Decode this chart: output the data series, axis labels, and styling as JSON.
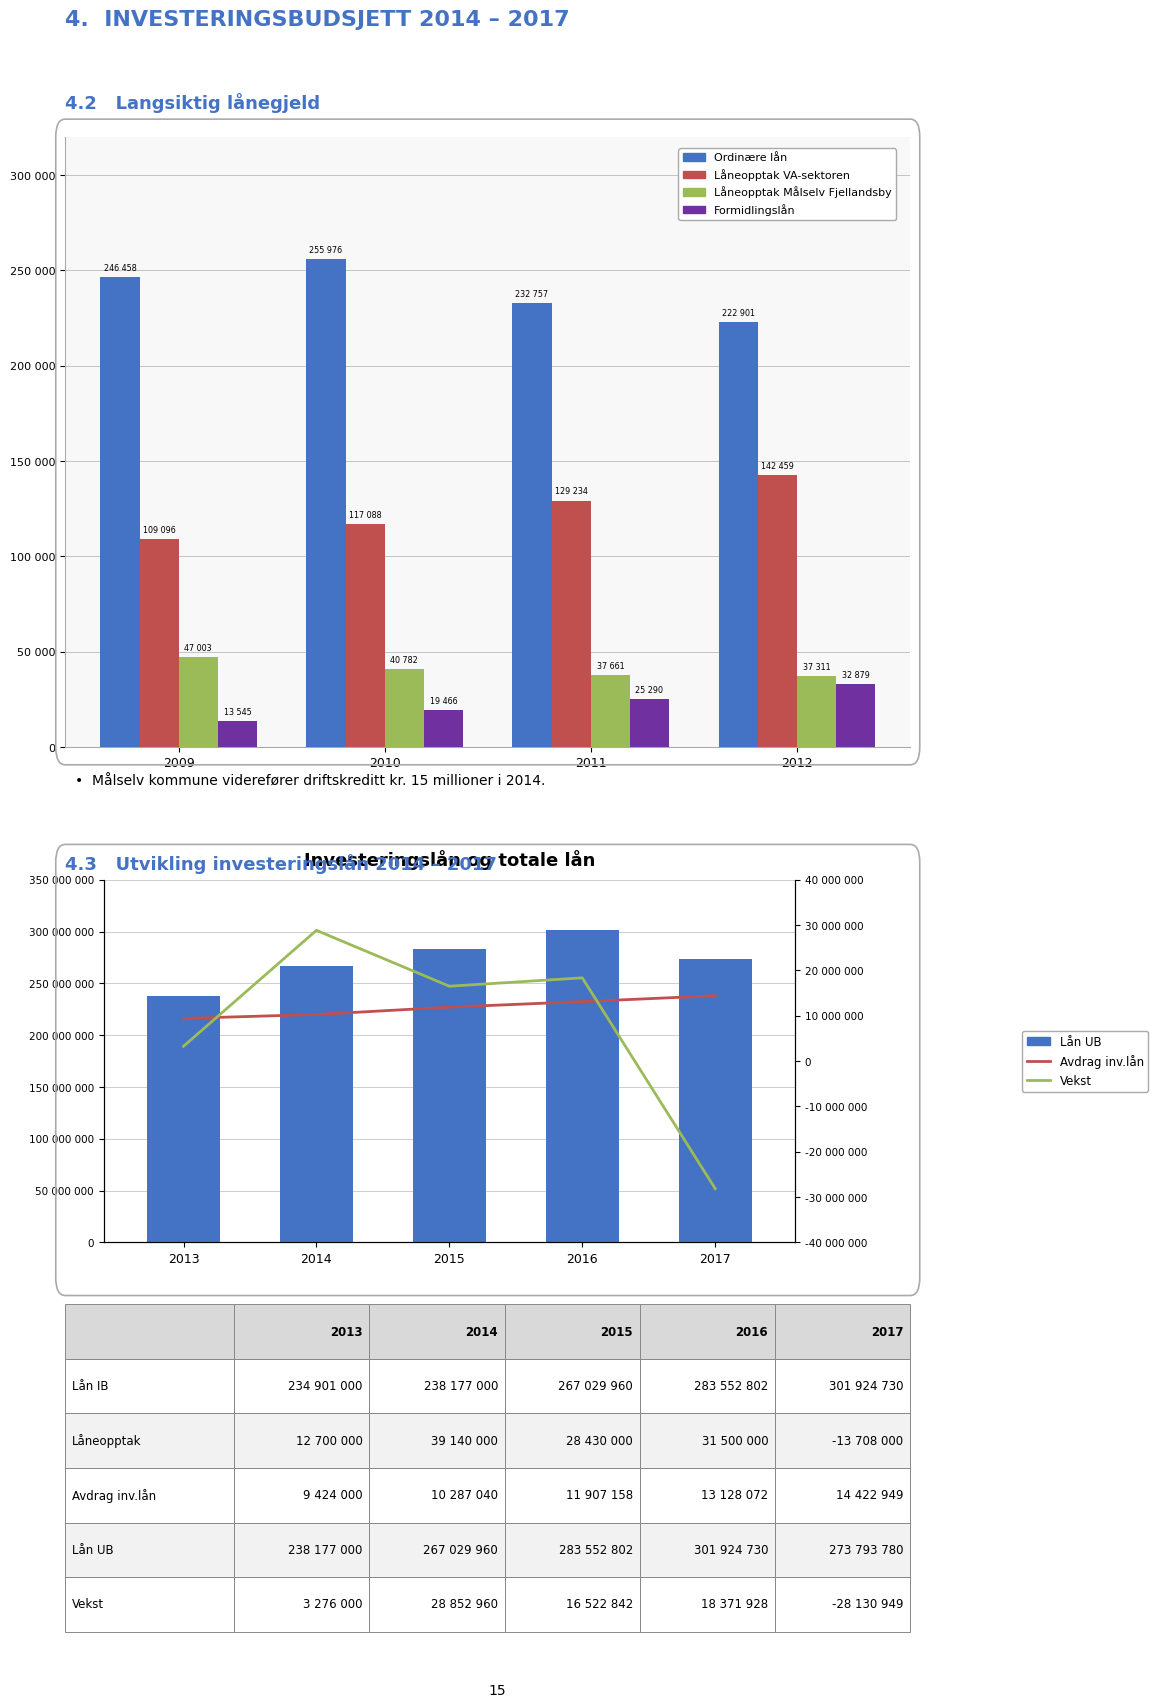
{
  "page_title": "4.  INVESTERINGSBUDSJETT 2014 – 2017",
  "section1_title": "4.2   Langsiktig lånegjeld",
  "section2_title": "4.3   Utvikling investeringslån 2014 – 2017",
  "bullet_text": "Målselv kommune viderefører driftskreditt kr. 15 millioner i 2014.",
  "chart1": {
    "years": [
      2009,
      2010,
      2011,
      2012
    ],
    "series": {
      "Ordinære lån": [
        246458,
        255976,
        232757,
        222901
      ],
      "Låneopptak VA-sektoren": [
        109096,
        117088,
        129234,
        142459
      ],
      "Låneopptak Målselv Fjellandsby": [
        47003,
        40782,
        37661,
        37311
      ],
      "Formidlingslån": [
        13545,
        19466,
        25290,
        32879
      ]
    },
    "colors": [
      "#4472C4",
      "#C0504D",
      "#9BBB59",
      "#7030A0"
    ],
    "ylim": [
      0,
      320000
    ],
    "yticks": [
      0,
      50000,
      100000,
      150000,
      200000,
      250000,
      300000
    ],
    "yticklabels": [
      "0",
      "50 000",
      "100 000",
      "150 000",
      "200 000",
      "250 000",
      "300 000"
    ]
  },
  "chart2": {
    "title": "Investeringslån og totale lån",
    "years": [
      2013,
      2014,
      2015,
      2016,
      2017
    ],
    "bar_values": [
      238177000,
      267029960,
      283552802,
      301924730,
      273793780
    ],
    "bar_color": "#4472C4",
    "avdrag_values": [
      9424000,
      10287040,
      11907158,
      13128072,
      14422949
    ],
    "vekst_values": [
      3276000,
      28852960,
      16522842,
      18371928,
      -28130949
    ],
    "left_ylim": [
      0,
      350000000
    ],
    "left_yticks": [
      0,
      50000000,
      100000000,
      150000000,
      200000000,
      250000000,
      300000000,
      350000000
    ],
    "left_yticklabels": [
      "0",
      "50 000 000",
      "100 000 000",
      "150 000 000",
      "200 000 000",
      "250 000 000",
      "300 000 000",
      "350 000 000"
    ],
    "right_ylim": [
      -40000000,
      40000000
    ],
    "right_yticks": [
      -40000000,
      -30000000,
      -20000000,
      -10000000,
      0,
      10000000,
      20000000,
      30000000,
      40000000
    ],
    "right_yticklabels": [
      "-40 000 000",
      "-30 000 000",
      "-20 000 000",
      "-10 000 000",
      "0",
      "10 000 000",
      "20 000 000",
      "30 000 000",
      "40 000 000"
    ],
    "avdrag_color": "#C0504D",
    "vekst_color": "#9BBB59",
    "legend_labels": [
      "Lån UB",
      "Avdrag inv.lån",
      "Vekst"
    ]
  },
  "table": {
    "headers": [
      "",
      "2013",
      "2014",
      "2015",
      "2016",
      "2017"
    ],
    "rows": [
      [
        "Lån IB",
        "234 901 000",
        "238 177 000",
        "267 029 960",
        "283 552 802",
        "301 924 730"
      ],
      [
        "Låneopptak",
        "12 700 000",
        "39 140 000",
        "28 430 000",
        "31 500 000",
        "-13 708 000"
      ],
      [
        "Avdrag inv.lån",
        "9 424 000",
        "10 287 040",
        "11 907 158",
        "13 128 072",
        "14 422 949"
      ],
      [
        "Lån UB",
        "238 177 000",
        "267 029 960",
        "283 552 802",
        "301 924 730",
        "273 793 780"
      ],
      [
        "Vekst",
        "3 276 000",
        "28 852 960",
        "16 522 842",
        "18 371 928",
        "-28 130 949"
      ]
    ]
  },
  "page_number": "15",
  "bg_color": "#FFFFFF",
  "title_color": "#4472C4",
  "text_color": "#000000"
}
